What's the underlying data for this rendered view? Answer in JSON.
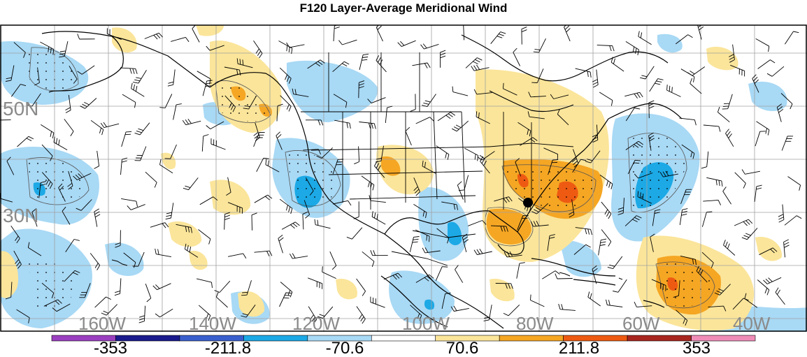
{
  "title": "F120 Layer-Average Meridional Wind",
  "map": {
    "lat_labels": [
      "50N",
      "30N"
    ],
    "lon_labels": [
      "160W",
      "140W",
      "120W",
      "100W",
      "80W",
      "60W",
      "40W"
    ],
    "colors": {
      "background": "#ffffff",
      "coast": "#000000",
      "grid": "#a0a0a0",
      "barb": "#000000",
      "contour": "#555555",
      "marker": "#000000"
    }
  },
  "colorbar": {
    "labels": [
      "-353",
      "-211.8",
      "-70.6",
      "70.6",
      "211.8",
      "353"
    ],
    "colors": [
      "#9b3fc0",
      "#1a1a8c",
      "#3a5fcd",
      "#1ca9e6",
      "#a8d9f5",
      "#ffffff",
      "#fbe59a",
      "#f5a623",
      "#ee5a12",
      "#a7261f",
      "#f08cb8"
    ]
  }
}
